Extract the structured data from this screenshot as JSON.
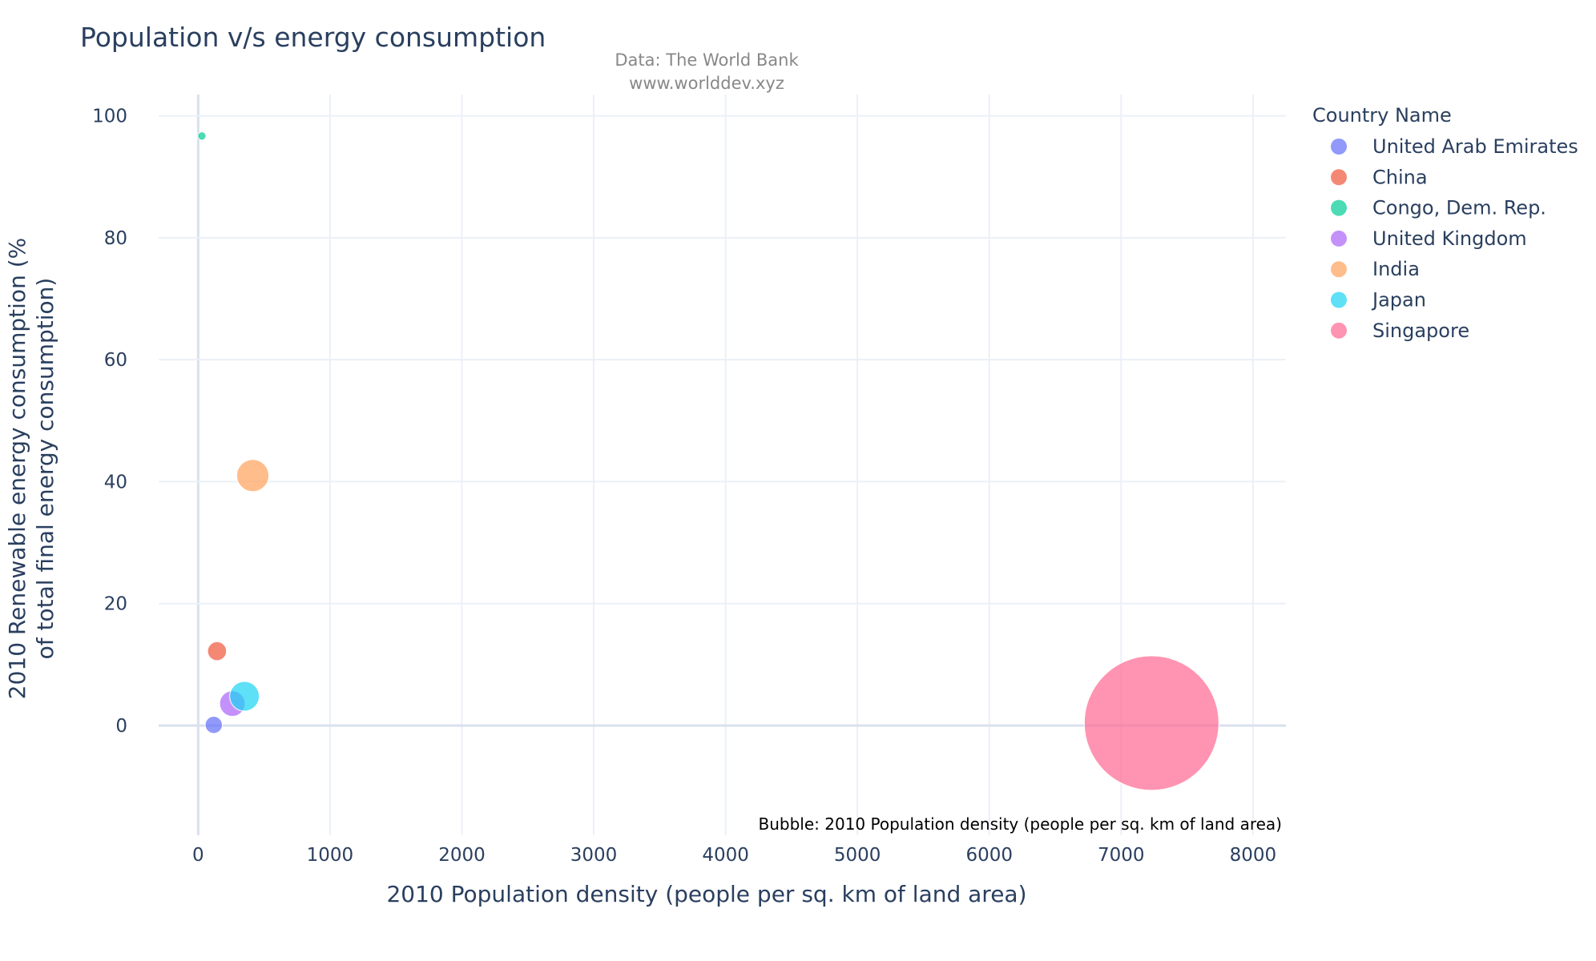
{
  "chart_data": {
    "type": "scatter",
    "title": "Population v/s energy consumption",
    "subtitle_lines": [
      "Data: The World Bank",
      "www.worlddev.xyz"
    ],
    "xlabel": "2010 Population density (people per sq. km of land area)",
    "ylabel_lines": [
      "2010 Renewable energy consumption (%",
      "of total final energy consumption)"
    ],
    "size_annotation": "Bubble: 2010 Population density (people per sq. km of land area)",
    "xlim": [
      -300,
      8250
    ],
    "ylim": [
      -18,
      103.5
    ],
    "x_ticks": [
      0,
      1000,
      2000,
      3000,
      4000,
      5000,
      6000,
      7000,
      8000
    ],
    "y_ticks": [
      0,
      20,
      40,
      60,
      80,
      100
    ],
    "grid": true,
    "legend_title": "Country Name",
    "legend_position": "right",
    "series": [
      {
        "name": "United Arab Emirates",
        "color": "#636efa",
        "x": 118,
        "y": 0.1,
        "size": 118
      },
      {
        "name": "China",
        "color": "#ef553b",
        "x": 143,
        "y": 12.2,
        "size": 143
      },
      {
        "name": "Congo, Dem. Rep.",
        "color": "#00cc96",
        "x": 28,
        "y": 96.7,
        "size": 28
      },
      {
        "name": "United Kingdom",
        "color": "#ab63fa",
        "x": 259,
        "y": 3.6,
        "size": 259
      },
      {
        "name": "India",
        "color": "#ffa15a",
        "x": 414,
        "y": 41.0,
        "size": 414
      },
      {
        "name": "Japan",
        "color": "#19d3f3",
        "x": 351,
        "y": 4.8,
        "size": 351
      },
      {
        "name": "Singapore",
        "color": "#ff6692",
        "x": 7231,
        "y": 0.4,
        "size": 7231
      }
    ]
  }
}
